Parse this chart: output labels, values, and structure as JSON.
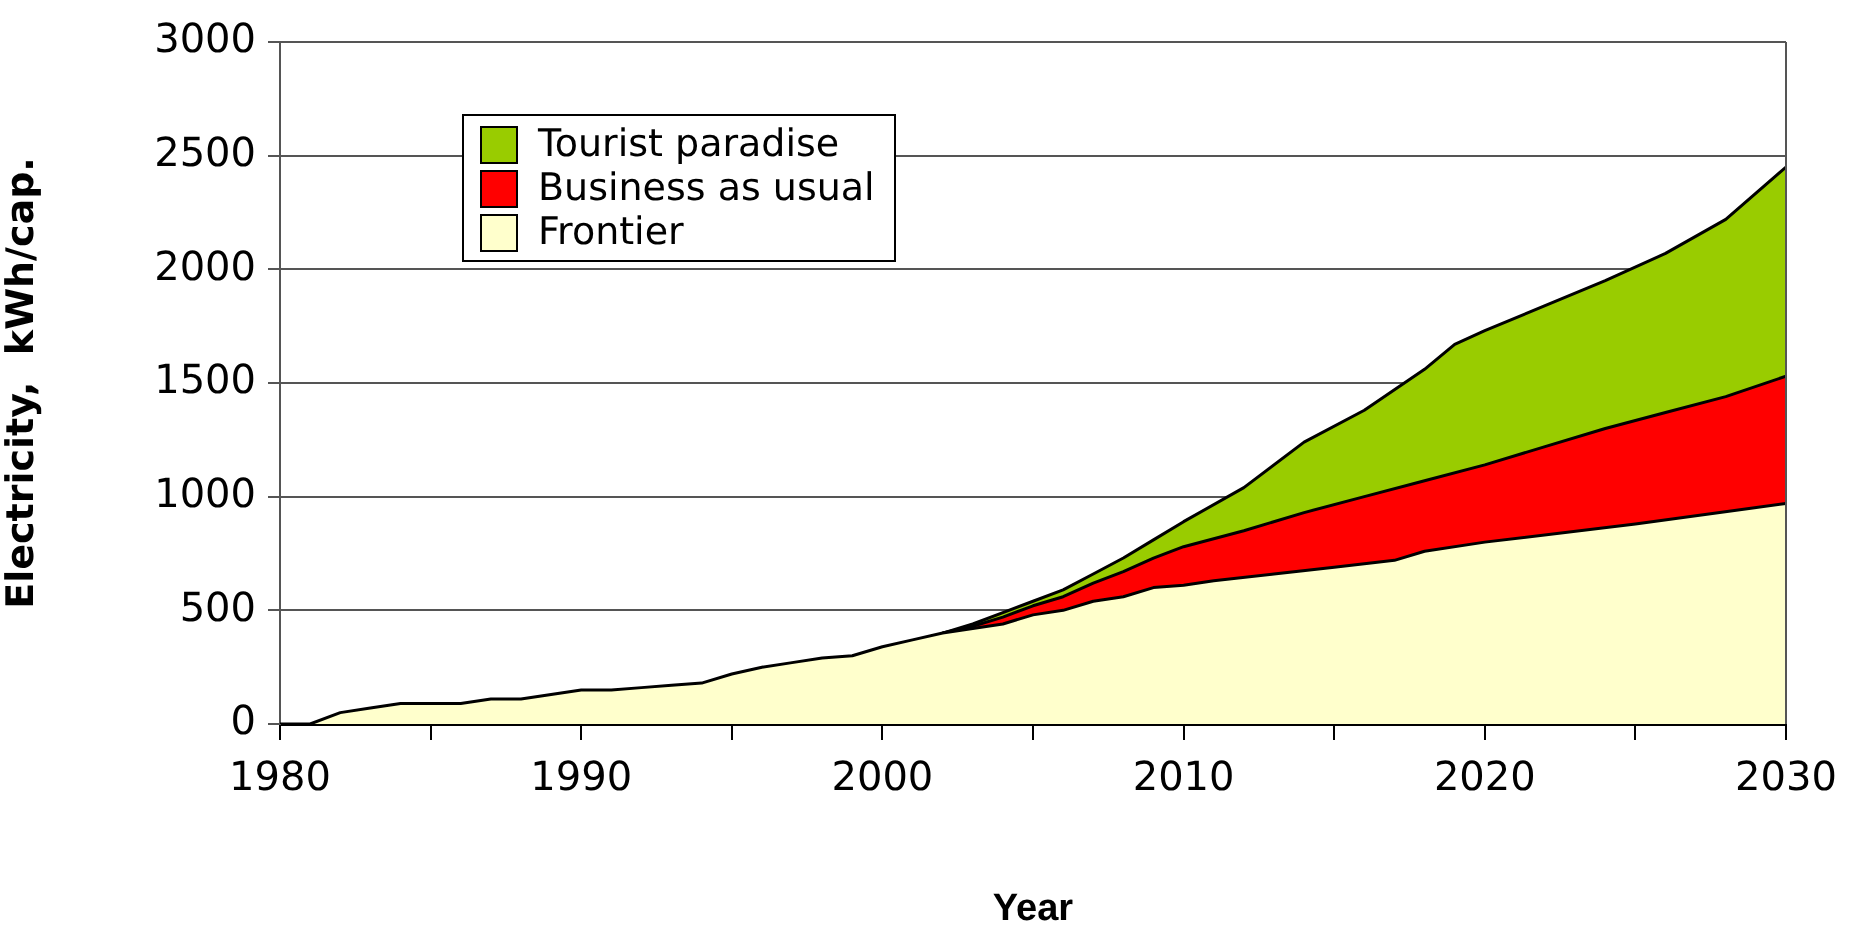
{
  "chart_data": {
    "type": "area",
    "xlabel": "Year",
    "ylabel": "Electricity,  kWh/cap.",
    "xlim": [
      1980,
      2030
    ],
    "xticks": [
      1980,
      {
        "value": 1985,
        "label": null
      },
      1990,
      {
        "value": 1995,
        "label": null
      },
      2000,
      {
        "value": 2005,
        "label": null
      },
      2010,
      {
        "value": 2015,
        "label": null
      },
      2020,
      {
        "value": 2025,
        "label": null
      },
      2030
    ],
    "ylim": [
      0,
      3000
    ],
    "yticks": [
      0,
      500,
      1000,
      1500,
      2000,
      2500,
      3000
    ],
    "grid": "y",
    "legend": "top left",
    "marker": "none",
    "series": [
      {
        "name": "Tourist paradise",
        "color": "#99cc00",
        "x": [
          2002,
          2003,
          2004,
          2005,
          2006,
          2007,
          2008,
          2009,
          2010,
          2012,
          2014,
          2016,
          2018,
          2019,
          2020,
          2022,
          2024,
          2026,
          2028,
          2030
        ],
        "values": [
          400,
          440,
          490,
          540,
          590,
          660,
          730,
          810,
          890,
          1040,
          1240,
          1380,
          1560,
          1670,
          1730,
          1840,
          1950,
          2070,
          2220,
          2450
        ]
      },
      {
        "name": "Business as usual",
        "color": "#ff0000",
        "x": [
          2002,
          2003,
          2004,
          2005,
          2006,
          2007,
          2008,
          2009,
          2010,
          2012,
          2014,
          2016,
          2018,
          2020,
          2022,
          2024,
          2026,
          2028,
          2030
        ],
        "values": [
          400,
          430,
          470,
          520,
          560,
          620,
          670,
          730,
          780,
          850,
          930,
          1000,
          1070,
          1140,
          1220,
          1300,
          1370,
          1440,
          1530
        ]
      },
      {
        "name": "Frontier",
        "color": "#ffffcc",
        "x": [
          1980,
          1981,
          1982,
          1983,
          1984,
          1985,
          1986,
          1987,
          1988,
          1989,
          1990,
          1991,
          1992,
          1993,
          1994,
          1995,
          1996,
          1997,
          1998,
          1999,
          2000,
          2001,
          2002,
          2003,
          2004,
          2005,
          2006,
          2007,
          2008,
          2009,
          2010,
          2011,
          2013,
          2015,
          2017,
          2018,
          2020,
          2025,
          2030
        ],
        "values": [
          0,
          0,
          50,
          70,
          90,
          90,
          90,
          110,
          110,
          130,
          150,
          150,
          160,
          170,
          180,
          220,
          250,
          270,
          290,
          300,
          340,
          370,
          400,
          420,
          440,
          480,
          500,
          540,
          560,
          600,
          610,
          630,
          660,
          690,
          720,
          760,
          800,
          880,
          970
        ]
      }
    ]
  }
}
